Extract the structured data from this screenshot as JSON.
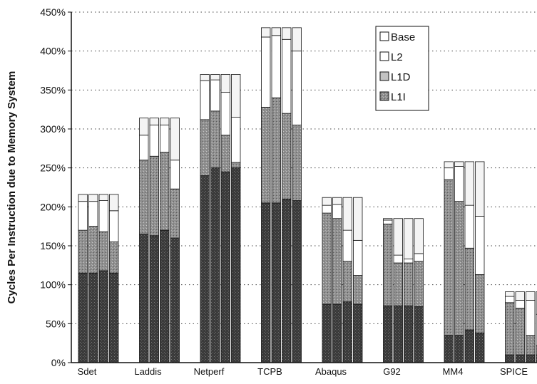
{
  "chart_data": {
    "type": "bar",
    "stacked": true,
    "ylabel": "Cycles Per Instruction due to Memory System",
    "ylim": [
      0,
      450
    ],
    "y_unit": "%",
    "yticks": [
      0,
      50,
      100,
      150,
      200,
      250,
      300,
      350,
      400,
      450
    ],
    "ytick_labels": [
      "0%",
      "50%",
      "100%",
      "150%",
      "200%",
      "250%",
      "300%",
      "350%",
      "400%",
      "450%"
    ],
    "grid": "horizontal dotted",
    "legend": {
      "placement": "top-center",
      "entries": [
        "Base",
        "L2",
        "L1D",
        "L1I"
      ]
    },
    "series_colors": {
      "Base": "#f4f4f4",
      "L2": "#ffffff",
      "L1D": "#8f8f8f",
      "L1I": "#3a3a3a"
    },
    "categories": [
      {
        "name": "Sdet",
        "bars": [
          {
            "L1I": 115,
            "L1D": 55,
            "L2": 37,
            "Base": 9
          },
          {
            "L1I": 115,
            "L1D": 60,
            "L2": 32,
            "Base": 9
          },
          {
            "L1I": 118,
            "L1D": 50,
            "L2": 40,
            "Base": 8
          },
          {
            "L1I": 115,
            "L1D": 40,
            "L2": 40,
            "Base": 21
          }
        ]
      },
      {
        "name": "Laddis",
        "bars": [
          {
            "L1I": 165,
            "L1D": 95,
            "L2": 32,
            "Base": 22
          },
          {
            "L1I": 163,
            "L1D": 102,
            "L2": 40,
            "Base": 9
          },
          {
            "L1I": 170,
            "L1D": 100,
            "L2": 35,
            "Base": 9
          },
          {
            "L1I": 160,
            "L1D": 63,
            "L2": 37,
            "Base": 54
          }
        ]
      },
      {
        "name": "Netperf",
        "bars": [
          {
            "L1I": 240,
            "L1D": 72,
            "L2": 50,
            "Base": 8
          },
          {
            "L1I": 250,
            "L1D": 73,
            "L2": 40,
            "Base": 7
          },
          {
            "L1I": 245,
            "L1D": 47,
            "L2": 55,
            "Base": 23
          },
          {
            "L1I": 250,
            "L1D": 7,
            "L2": 58,
            "Base": 55
          }
        ]
      },
      {
        "name": "TCPB",
        "bars": [
          {
            "L1I": 205,
            "L1D": 123,
            "L2": 90,
            "Base": 12
          },
          {
            "L1I": 205,
            "L1D": 135,
            "L2": 80,
            "Base": 10
          },
          {
            "L1I": 210,
            "L1D": 110,
            "L2": 95,
            "Base": 15
          },
          {
            "L1I": 208,
            "L1D": 97,
            "L2": 95,
            "Base": 30
          }
        ]
      },
      {
        "name": "Abaqus",
        "bars": [
          {
            "L1I": 75,
            "L1D": 117,
            "L2": 10,
            "Base": 10
          },
          {
            "L1I": 75,
            "L1D": 110,
            "L2": 18,
            "Base": 9
          },
          {
            "L1I": 78,
            "L1D": 52,
            "L2": 40,
            "Base": 42
          },
          {
            "L1I": 75,
            "L1D": 37,
            "L2": 45,
            "Base": 55
          }
        ]
      },
      {
        "name": "G92",
        "bars": [
          {
            "L1I": 73,
            "L1D": 105,
            "L2": 5,
            "Base": 2
          },
          {
            "L1I": 73,
            "L1D": 55,
            "L2": 10,
            "Base": 47
          },
          {
            "L1I": 73,
            "L1D": 55,
            "L2": 5,
            "Base": 52
          },
          {
            "L1I": 72,
            "L1D": 58,
            "L2": 10,
            "Base": 45
          }
        ]
      },
      {
        "name": "MM4",
        "bars": [
          {
            "L1I": 35,
            "L1D": 200,
            "L2": 15,
            "Base": 8
          },
          {
            "L1I": 35,
            "L1D": 172,
            "L2": 45,
            "Base": 6
          },
          {
            "L1I": 42,
            "L1D": 105,
            "L2": 55,
            "Base": 56
          },
          {
            "L1I": 38,
            "L1D": 75,
            "L2": 75,
            "Base": 70
          }
        ]
      },
      {
        "name": "SPICE",
        "bars": [
          {
            "L1I": 10,
            "L1D": 67,
            "L2": 8,
            "Base": 6
          },
          {
            "L1I": 10,
            "L1D": 60,
            "L2": 10,
            "Base": 11
          },
          {
            "L1I": 10,
            "L1D": 25,
            "L2": 45,
            "Base": 11
          },
          {
            "L1I": 10,
            "L1D": 12,
            "L2": 40,
            "Base": 29
          }
        ]
      }
    ]
  }
}
